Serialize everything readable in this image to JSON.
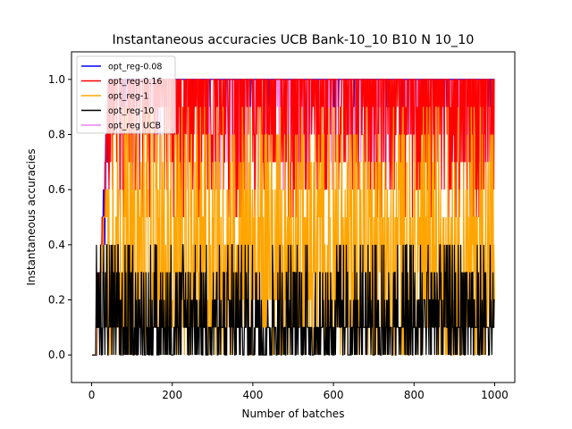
{
  "chart_data": {
    "type": "line",
    "title": "Instantaneous accuracies UCB Bank-10_10 B10 N 10_10",
    "xlabel": "Number of batches",
    "ylabel": "Instantaneous accuracies",
    "xlim": [
      -50,
      1050
    ],
    "ylim": [
      -0.1,
      1.1
    ],
    "x_ticks": [
      0,
      200,
      400,
      600,
      800,
      1000
    ],
    "x_tick_labels": [
      "0",
      "200",
      "400",
      "600",
      "800",
      "1000"
    ],
    "y_ticks": [
      0.0,
      0.2,
      0.4,
      0.6,
      0.8,
      1.0
    ],
    "y_tick_labels": [
      "0.0",
      "0.2",
      "0.4",
      "0.6",
      "0.8",
      "1.0"
    ],
    "grid": false,
    "legend_position": "top-left",
    "n_points": 1000,
    "series": [
      {
        "name": "opt_reg-0.08",
        "color": "#0000ff",
        "level_range": [
          0.9,
          1.0
        ],
        "steady_fraction": 0.92
      },
      {
        "name": "opt_reg-0.16",
        "color": "#ff0000",
        "level_range": [
          0.5,
          1.0
        ],
        "steady_fraction": 0.55
      },
      {
        "name": "opt_reg-1",
        "color": "#ffa500",
        "level_range": [
          0.0,
          0.9
        ],
        "steady_fraction": 0.25
      },
      {
        "name": "opt_reg-10",
        "color": "#000000",
        "level_range": [
          0.0,
          0.4
        ],
        "steady_fraction": 0.45
      },
      {
        "name": "opt_reg UCB",
        "color": "#ee82ee",
        "level_range": [
          0.6,
          1.0
        ],
        "steady_fraction": 0.7
      }
    ]
  }
}
